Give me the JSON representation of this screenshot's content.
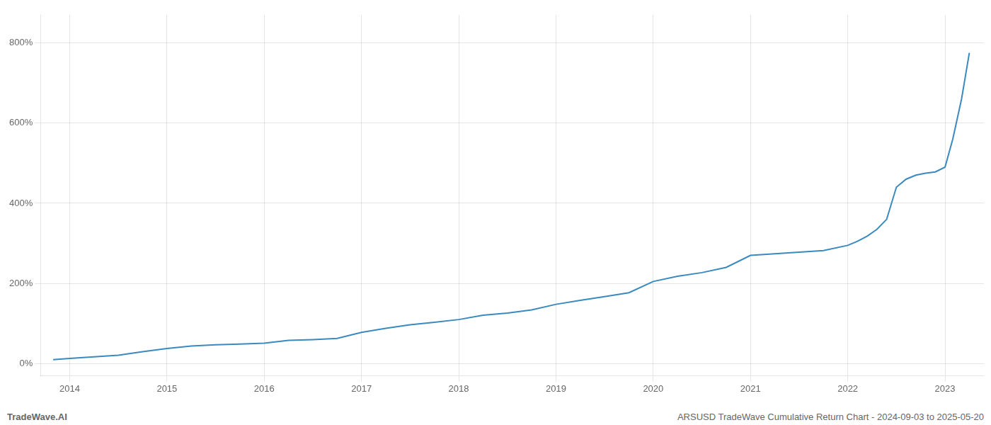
{
  "chart_data": {
    "type": "line",
    "annotations": [
      "TradeWave.AI",
      "ARSUSD TradeWave Cumulative Return Chart - 2024-09-03 to 2025-05-20"
    ],
    "x": [
      2013.83,
      2014.0,
      2014.25,
      2014.5,
      2014.75,
      2015.0,
      2015.25,
      2015.5,
      2015.75,
      2016.0,
      2016.25,
      2016.5,
      2016.75,
      2017.0,
      2017.25,
      2017.5,
      2017.75,
      2018.0,
      2018.25,
      2018.5,
      2018.75,
      2019.0,
      2019.25,
      2019.5,
      2019.75,
      2020.0,
      2020.25,
      2020.5,
      2020.75,
      2021.0,
      2021.25,
      2021.5,
      2021.75,
      2022.0,
      2022.1,
      2022.2,
      2022.3,
      2022.4,
      2022.5,
      2022.6,
      2022.7,
      2022.8,
      2022.9,
      2023.0,
      2023.08,
      2023.17,
      2023.25
    ],
    "values": [
      10,
      13,
      17,
      21,
      30,
      38,
      44,
      47,
      49,
      51,
      58,
      60,
      63,
      78,
      88,
      97,
      103,
      110,
      121,
      126,
      134,
      148,
      158,
      167,
      177,
      205,
      218,
      227,
      240,
      270,
      274,
      278,
      282,
      295,
      305,
      318,
      335,
      360,
      440,
      460,
      470,
      475,
      478,
      490,
      560,
      660,
      775
    ],
    "color": "#3a8abf",
    "xlim": [
      2013.7,
      2023.4
    ],
    "ylim": [
      -30,
      870
    ],
    "xticks": [
      2014,
      2015,
      2016,
      2017,
      2018,
      2019,
      2020,
      2021,
      2022,
      2023
    ],
    "yticks": [
      {
        "value": 0,
        "label": "0%"
      },
      {
        "value": 200,
        "label": "200%"
      },
      {
        "value": 400,
        "label": "400%"
      },
      {
        "value": 600,
        "label": "600%"
      },
      {
        "value": 800,
        "label": "800%"
      }
    ],
    "grid": true
  }
}
